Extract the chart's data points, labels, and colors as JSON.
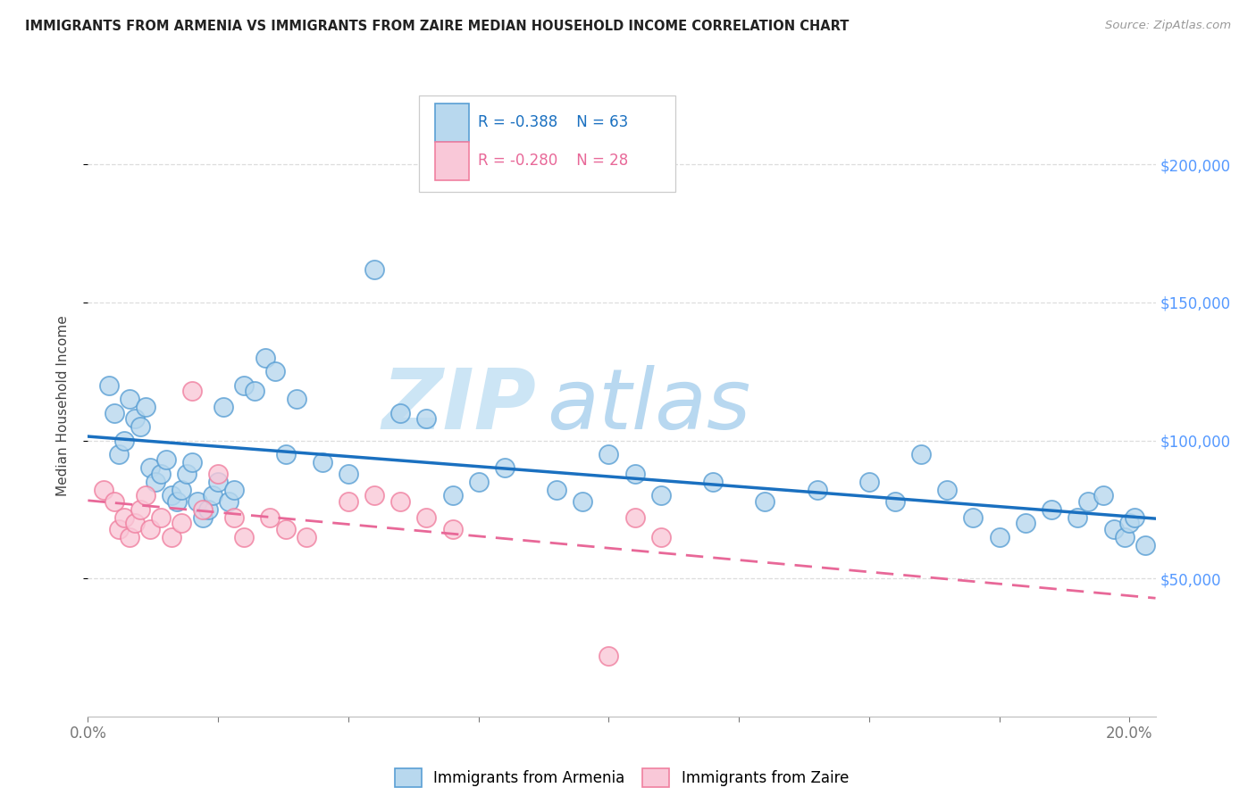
{
  "title": "IMMIGRANTS FROM ARMENIA VS IMMIGRANTS FROM ZAIRE MEDIAN HOUSEHOLD INCOME CORRELATION CHART",
  "source": "Source: ZipAtlas.com",
  "ylabel": "Median Household Income",
  "xlim": [
    0.0,
    0.205
  ],
  "ylim": [
    0,
    225000
  ],
  "ytick_values": [
    50000,
    100000,
    150000,
    200000
  ],
  "ytick_labels": [
    "$50,000",
    "$100,000",
    "$150,000",
    "$200,000"
  ],
  "xtick_positions": [
    0.0,
    0.025,
    0.05,
    0.075,
    0.1,
    0.125,
    0.15,
    0.175,
    0.2
  ],
  "legend_label1": "Immigrants from Armenia",
  "legend_label2": "Immigrants from Zaire",
  "R1": "-0.388",
  "N1": "63",
  "R2": "-0.280",
  "N2": "28",
  "color_armenia_face": "#b8d8ee",
  "color_armenia_edge": "#5a9fd4",
  "color_zaire_face": "#f9c8d8",
  "color_zaire_edge": "#f080a0",
  "color_line_armenia": "#1a70c0",
  "color_line_zaire": "#e86898",
  "watermark_text": "ZIPatlas",
  "watermark_color": "#d8edf8",
  "background": "#ffffff",
  "grid_color": "#dddddd",
  "title_color": "#222222",
  "source_color": "#999999",
  "ylabel_color": "#444444",
  "xtick_color": "#777777",
  "ytick_right_color": "#5599ff",
  "legend_edge_color": "#cccccc",
  "scatter_armenia_x": [
    0.004,
    0.005,
    0.006,
    0.007,
    0.008,
    0.009,
    0.01,
    0.011,
    0.012,
    0.013,
    0.014,
    0.015,
    0.016,
    0.017,
    0.018,
    0.019,
    0.02,
    0.021,
    0.022,
    0.023,
    0.024,
    0.025,
    0.026,
    0.027,
    0.028,
    0.03,
    0.032,
    0.034,
    0.036,
    0.038,
    0.04,
    0.045,
    0.05,
    0.055,
    0.06,
    0.065,
    0.07,
    0.075,
    0.08,
    0.09,
    0.095,
    0.1,
    0.105,
    0.11,
    0.12,
    0.13,
    0.14,
    0.15,
    0.155,
    0.16,
    0.165,
    0.17,
    0.175,
    0.18,
    0.185,
    0.19,
    0.192,
    0.195,
    0.197,
    0.199,
    0.2,
    0.201,
    0.203
  ],
  "scatter_armenia_y": [
    120000,
    110000,
    95000,
    100000,
    115000,
    108000,
    105000,
    112000,
    90000,
    85000,
    88000,
    93000,
    80000,
    78000,
    82000,
    88000,
    92000,
    78000,
    72000,
    75000,
    80000,
    85000,
    112000,
    78000,
    82000,
    120000,
    118000,
    130000,
    125000,
    95000,
    115000,
    92000,
    88000,
    162000,
    110000,
    108000,
    80000,
    85000,
    90000,
    82000,
    78000,
    95000,
    88000,
    80000,
    85000,
    78000,
    82000,
    85000,
    78000,
    95000,
    82000,
    72000,
    65000,
    70000,
    75000,
    72000,
    78000,
    80000,
    68000,
    65000,
    70000,
    72000,
    62000
  ],
  "scatter_zaire_x": [
    0.003,
    0.005,
    0.006,
    0.007,
    0.008,
    0.009,
    0.01,
    0.011,
    0.012,
    0.014,
    0.016,
    0.018,
    0.02,
    0.022,
    0.025,
    0.028,
    0.03,
    0.035,
    0.038,
    0.042,
    0.05,
    0.055,
    0.06,
    0.065,
    0.07,
    0.1,
    0.105,
    0.11
  ],
  "scatter_zaire_y": [
    82000,
    78000,
    68000,
    72000,
    65000,
    70000,
    75000,
    80000,
    68000,
    72000,
    65000,
    70000,
    118000,
    75000,
    88000,
    72000,
    65000,
    72000,
    68000,
    65000,
    78000,
    80000,
    78000,
    72000,
    68000,
    22000,
    72000,
    65000
  ]
}
